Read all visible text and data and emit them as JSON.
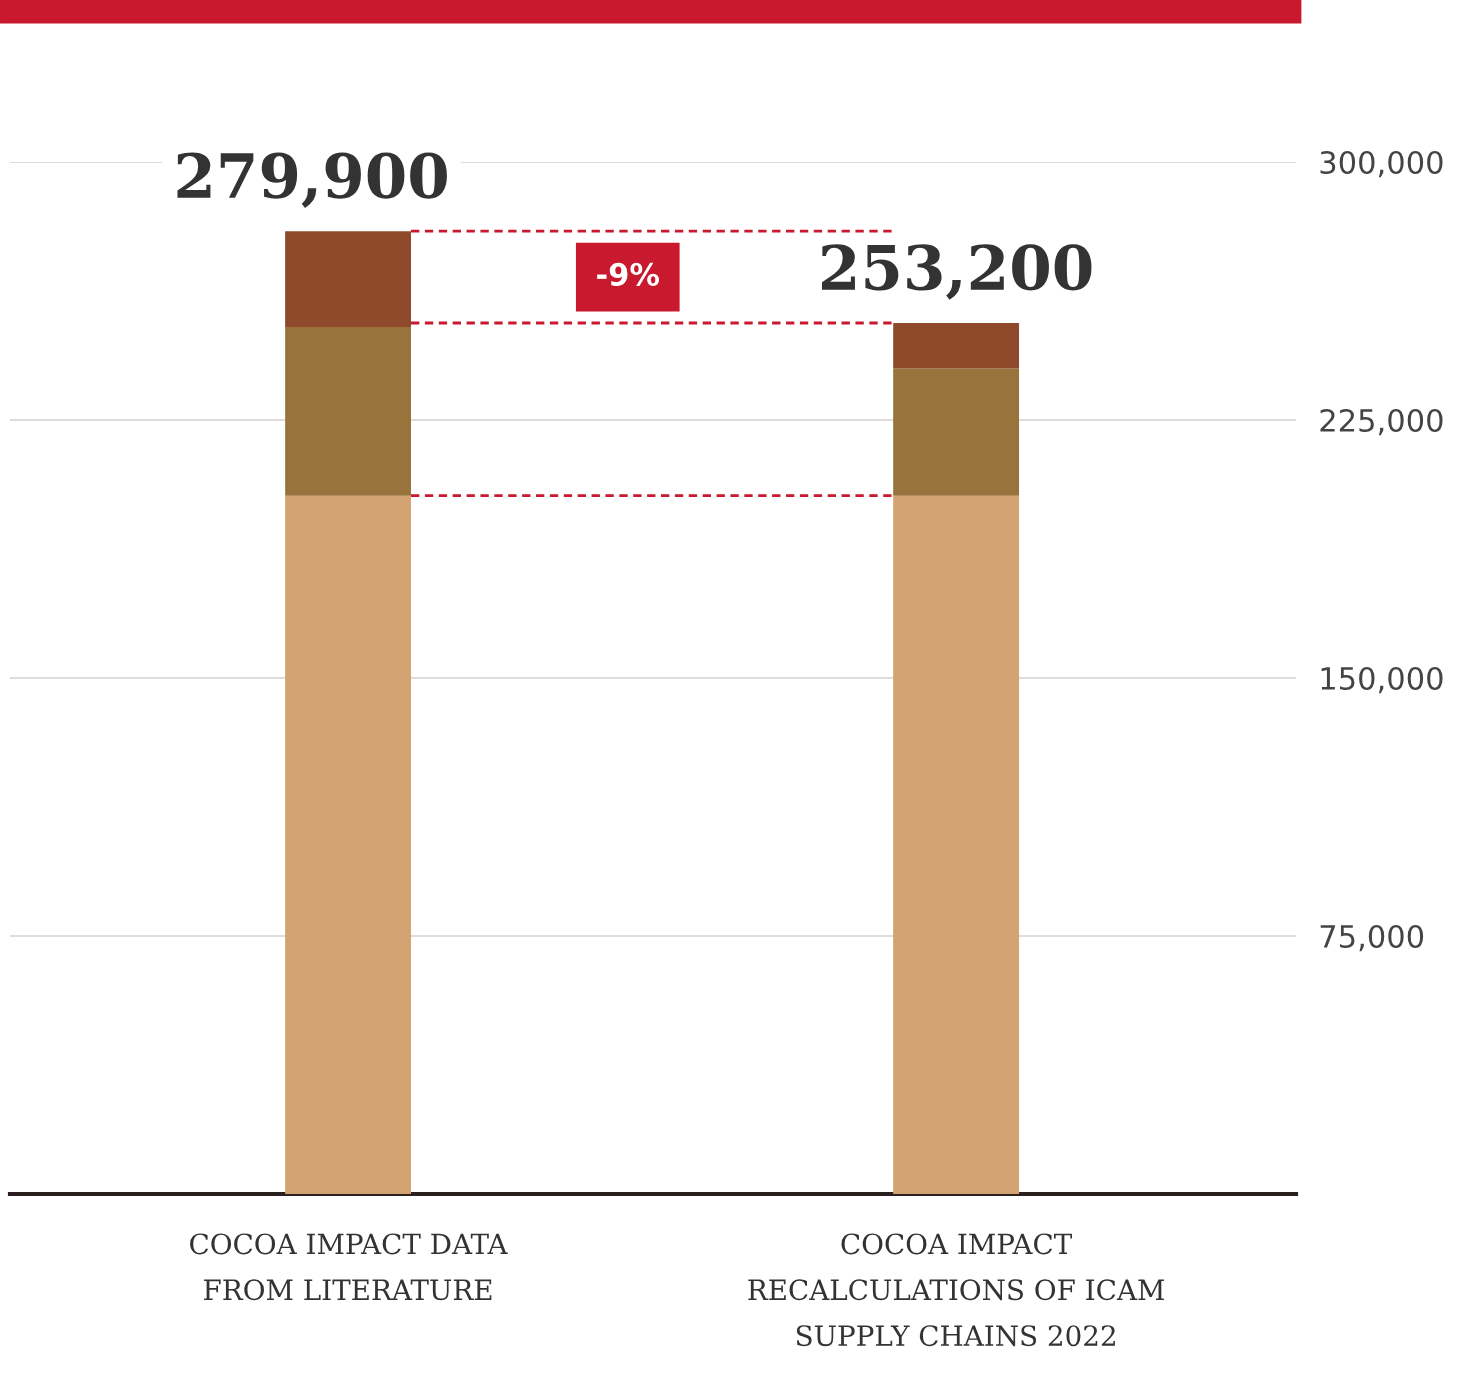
{
  "chart_data": {
    "type": "bar",
    "stacked": true,
    "categories": [
      "COCOA IMPACT DATA\nFROM LITERATURE",
      "COCOA IMPACT\nRECALCULATIONS OF ICAM\nSUPPLY CHAINS 2022"
    ],
    "series": [
      {
        "color": "#d4a372",
        "values": [
          203000,
          203000
        ]
      },
      {
        "color": "#98743c",
        "values": [
          49000,
          37000
        ]
      },
      {
        "color": "#8e4a2a",
        "values": [
          27900,
          13200
        ]
      }
    ],
    "totals": [
      "279,900",
      "253,200"
    ],
    "ylim": [
      0,
      300000
    ],
    "yticks": [
      {
        "value": 75000,
        "label": "75,000"
      },
      {
        "value": 150000,
        "label": "150,000"
      },
      {
        "value": 225000,
        "label": "225,000"
      },
      {
        "value": 300000,
        "label": "300,000"
      }
    ],
    "grid": "y",
    "ref_lines": [
      {
        "axis": "y",
        "value": 279900,
        "color": "#c8192e",
        "line_style": "dashed"
      },
      {
        "axis": "y",
        "value": 253200,
        "color": "#c8192e",
        "line_style": "dashed"
      },
      {
        "axis": "y",
        "value": 203000,
        "color": "#c8192e",
        "line_style": "dashed"
      }
    ],
    "annotations": [
      "-9%"
    ]
  }
}
